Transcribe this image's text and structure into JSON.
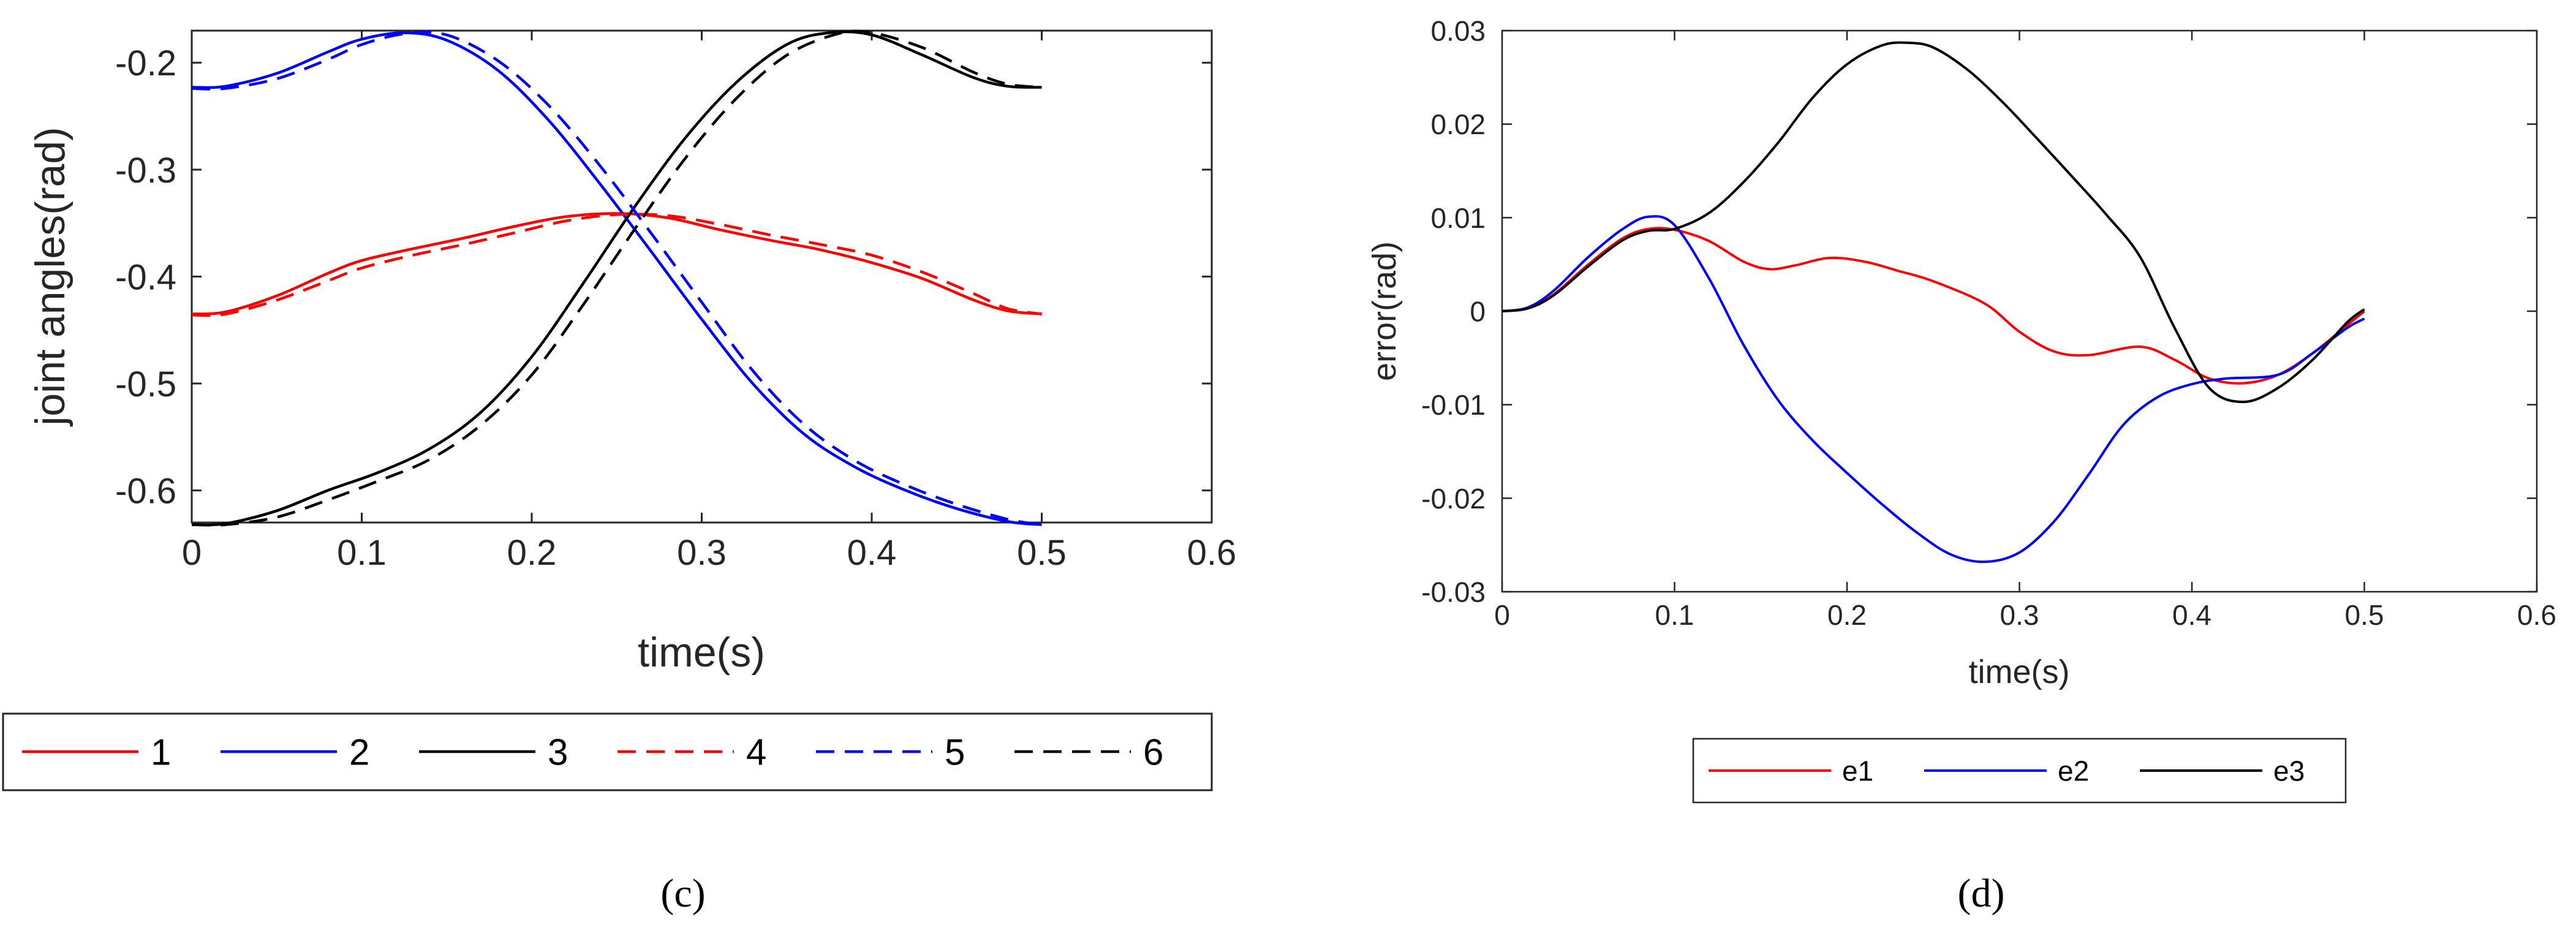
{
  "chart_data": [
    {
      "type": "line",
      "xlabel": "time(s)",
      "ylabel": "joint angles(rad)",
      "xlim": [
        0,
        0.6
      ],
      "ylim": [
        -0.63,
        -0.17
      ],
      "xticks": [
        0,
        0.1,
        0.2,
        0.3,
        0.4,
        0.5,
        0.6
      ],
      "xtick_labels": [
        "0",
        "0.1",
        "0.2",
        "0.3",
        "0.4",
        "0.5",
        "0.6"
      ],
      "yticks": [
        -0.6,
        -0.5,
        -0.4,
        -0.3,
        -0.2
      ],
      "ytick_labels": [
        "-0.6",
        "-0.5",
        "-0.4",
        "-0.3",
        "-0.2"
      ],
      "legend_position": "below",
      "caption": "(c)",
      "series": [
        {
          "name": "1",
          "color": "#ff0000",
          "style": "solid",
          "x": [
            0,
            0.02,
            0.05,
            0.08,
            0.1,
            0.13,
            0.16,
            0.19,
            0.22,
            0.25,
            0.28,
            0.31,
            0.34,
            0.37,
            0.4,
            0.43,
            0.46,
            0.48,
            0.5
          ],
          "y": [
            -0.435,
            -0.433,
            -0.418,
            -0.397,
            -0.385,
            -0.374,
            -0.364,
            -0.353,
            -0.344,
            -0.341,
            -0.345,
            -0.356,
            -0.366,
            -0.375,
            -0.387,
            -0.402,
            -0.422,
            -0.432,
            -0.435
          ]
        },
        {
          "name": "2",
          "color": "#0000ff",
          "style": "solid",
          "x": [
            0,
            0.02,
            0.05,
            0.08,
            0.1,
            0.125,
            0.15,
            0.18,
            0.21,
            0.24,
            0.27,
            0.3,
            0.33,
            0.36,
            0.39,
            0.42,
            0.45,
            0.48,
            0.5
          ],
          "y": [
            -0.223,
            -0.222,
            -0.21,
            -0.19,
            -0.178,
            -0.172,
            -0.179,
            -0.207,
            -0.254,
            -0.313,
            -0.376,
            -0.44,
            -0.5,
            -0.547,
            -0.578,
            -0.6,
            -0.617,
            -0.629,
            -0.632
          ]
        },
        {
          "name": "3",
          "color": "#000000",
          "style": "solid",
          "x": [
            0,
            0.02,
            0.05,
            0.08,
            0.11,
            0.14,
            0.17,
            0.2,
            0.23,
            0.26,
            0.29,
            0.32,
            0.35,
            0.375,
            0.4,
            0.43,
            0.46,
            0.48,
            0.5
          ],
          "y": [
            -0.632,
            -0.631,
            -0.619,
            -0.6,
            -0.583,
            -0.561,
            -0.527,
            -0.475,
            -0.407,
            -0.336,
            -0.271,
            -0.219,
            -0.183,
            -0.172,
            -0.174,
            -0.193,
            -0.214,
            -0.222,
            -0.223
          ]
        },
        {
          "name": "4",
          "color": "#ff0000",
          "style": "dashed",
          "x": [
            0,
            0.02,
            0.05,
            0.08,
            0.1,
            0.13,
            0.16,
            0.19,
            0.22,
            0.25,
            0.28,
            0.31,
            0.34,
            0.37,
            0.4,
            0.43,
            0.46,
            0.48,
            0.5
          ],
          "y": [
            -0.436,
            -0.435,
            -0.422,
            -0.404,
            -0.392,
            -0.38,
            -0.37,
            -0.359,
            -0.348,
            -0.342,
            -0.343,
            -0.351,
            -0.361,
            -0.37,
            -0.38,
            -0.396,
            -0.416,
            -0.43,
            -0.435
          ]
        },
        {
          "name": "5",
          "color": "#0000ff",
          "style": "dashed",
          "x": [
            0,
            0.02,
            0.05,
            0.08,
            0.1,
            0.125,
            0.15,
            0.18,
            0.21,
            0.24,
            0.27,
            0.3,
            0.33,
            0.36,
            0.39,
            0.42,
            0.45,
            0.48,
            0.5
          ],
          "y": [
            -0.224,
            -0.224,
            -0.215,
            -0.197,
            -0.183,
            -0.173,
            -0.174,
            -0.198,
            -0.24,
            -0.296,
            -0.359,
            -0.424,
            -0.488,
            -0.538,
            -0.572,
            -0.595,
            -0.613,
            -0.627,
            -0.632
          ]
        },
        {
          "name": "6",
          "color": "#000000",
          "style": "dashed",
          "x": [
            0,
            0.02,
            0.05,
            0.08,
            0.11,
            0.14,
            0.17,
            0.2,
            0.23,
            0.26,
            0.29,
            0.32,
            0.35,
            0.38,
            0.4,
            0.43,
            0.46,
            0.48,
            0.5
          ],
          "y": [
            -0.632,
            -0.632,
            -0.625,
            -0.609,
            -0.591,
            -0.571,
            -0.539,
            -0.492,
            -0.427,
            -0.357,
            -0.29,
            -0.234,
            -0.193,
            -0.173,
            -0.172,
            -0.186,
            -0.209,
            -0.22,
            -0.223
          ]
        }
      ]
    },
    {
      "type": "line",
      "xlabel": "time(s)",
      "ylabel": "error(rad)",
      "xlim": [
        0,
        0.6
      ],
      "ylim": [
        -0.03,
        0.03
      ],
      "xticks": [
        0,
        0.1,
        0.2,
        0.3,
        0.4,
        0.5,
        0.6
      ],
      "xtick_labels": [
        "0",
        "0.1",
        "0.2",
        "0.3",
        "0.4",
        "0.5",
        "0.6"
      ],
      "yticks": [
        -0.03,
        -0.02,
        -0.01,
        0,
        0.01,
        0.02,
        0.03
      ],
      "ytick_labels": [
        "-0.03",
        "-0.02",
        "-0.01",
        "0",
        "0.01",
        "0.02",
        "0.03"
      ],
      "legend_position": "below",
      "caption": "(d)",
      "series": [
        {
          "name": "e1",
          "color": "#ff0000",
          "style": "solid",
          "x": [
            0,
            0.015,
            0.03,
            0.05,
            0.07,
            0.085,
            0.1,
            0.12,
            0.14,
            0.155,
            0.17,
            0.19,
            0.21,
            0.23,
            0.25,
            0.28,
            0.3,
            0.32,
            0.34,
            0.37,
            0.39,
            0.41,
            0.43,
            0.45,
            0.47,
            0.49,
            0.5
          ],
          "y": [
            0,
            0.0003,
            0.0018,
            0.005,
            0.0078,
            0.0088,
            0.0087,
            0.0075,
            0.0053,
            0.0045,
            0.0049,
            0.0057,
            0.0053,
            0.0043,
            0.0032,
            0.0008,
            -0.0022,
            -0.0043,
            -0.0047,
            -0.0038,
            -0.0052,
            -0.0072,
            -0.0077,
            -0.0068,
            -0.0045,
            -0.0015,
            0
          ]
        },
        {
          "name": "e2",
          "color": "#0000ff",
          "style": "solid",
          "x": [
            0,
            0.015,
            0.03,
            0.05,
            0.07,
            0.085,
            0.1,
            0.12,
            0.14,
            0.16,
            0.18,
            0.2,
            0.22,
            0.24,
            0.26,
            0.28,
            0.3,
            0.32,
            0.34,
            0.36,
            0.38,
            0.4,
            0.42,
            0.45,
            0.47,
            0.49,
            0.5
          ],
          "y": [
            0,
            0.0004,
            0.0022,
            0.0058,
            0.0088,
            0.0101,
            0.0092,
            0.0035,
            -0.0036,
            -0.0095,
            -0.0138,
            -0.0173,
            -0.0206,
            -0.0236,
            -0.026,
            -0.0268,
            -0.0258,
            -0.0225,
            -0.0175,
            -0.0122,
            -0.0092,
            -0.0078,
            -0.0072,
            -0.0068,
            -0.0045,
            -0.0018,
            -0.0008
          ]
        },
        {
          "name": "e3",
          "color": "#000000",
          "style": "solid",
          "x": [
            0,
            0.015,
            0.03,
            0.05,
            0.07,
            0.085,
            0.1,
            0.12,
            0.14,
            0.16,
            0.18,
            0.2,
            0.22,
            0.235,
            0.25,
            0.27,
            0.29,
            0.31,
            0.33,
            0.35,
            0.37,
            0.39,
            0.41,
            0.43,
            0.45,
            0.47,
            0.49,
            0.5
          ],
          "y": [
            0,
            0.0003,
            0.0017,
            0.0048,
            0.0076,
            0.0086,
            0.0088,
            0.0105,
            0.0138,
            0.018,
            0.0228,
            0.0264,
            0.0284,
            0.0287,
            0.0282,
            0.0258,
            0.0224,
            0.0185,
            0.0145,
            0.0104,
            0.0058,
            -0.0018,
            -0.0082,
            -0.0097,
            -0.0082,
            -0.0052,
            -0.0012,
            0.0002
          ]
        }
      ]
    }
  ]
}
